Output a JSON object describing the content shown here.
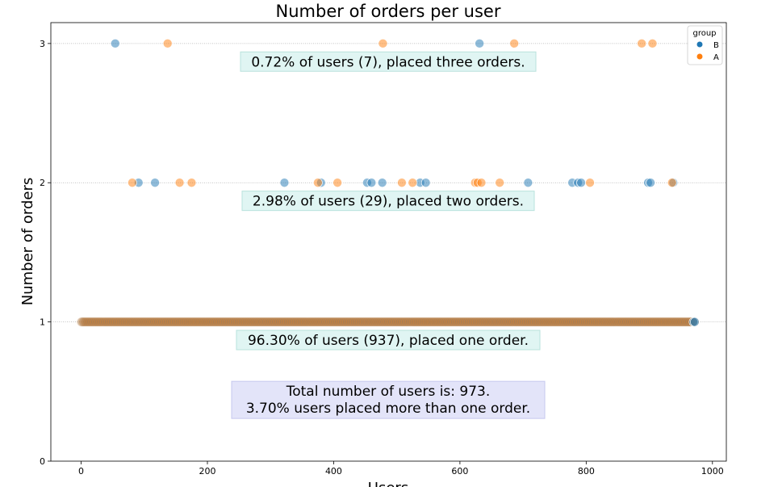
{
  "chart_data": {
    "type": "scatter",
    "title": "Number of orders per user",
    "xlabel": "Users",
    "ylabel": "Number of orders",
    "xlim": [
      -48,
      1022
    ],
    "ylim": [
      0,
      3.15
    ],
    "xticks": [
      0,
      200,
      400,
      600,
      800,
      1000
    ],
    "yticks": [
      0,
      1,
      2,
      3
    ],
    "grid": "horizontal dotted at 1, 2, 3",
    "legend": {
      "title": "group",
      "placement": "top-right",
      "entries": [
        "B",
        "A"
      ]
    },
    "colors": {
      "B": "#1f77b4",
      "A": "#ff7f0e"
    },
    "series": [
      {
        "name": "B",
        "points": [
          [
            54,
            3
          ],
          [
            631,
            3
          ],
          [
            91,
            2
          ],
          [
            117,
            2
          ],
          [
            322,
            2
          ],
          [
            380,
            2
          ],
          [
            453,
            2
          ],
          [
            460,
            2
          ],
          [
            477,
            2
          ],
          [
            537,
            2
          ],
          [
            546,
            2
          ],
          [
            708,
            2
          ],
          [
            778,
            2
          ],
          [
            787,
            2
          ],
          [
            792,
            2
          ],
          [
            898,
            2
          ],
          [
            902,
            2
          ],
          [
            938,
            2
          ],
          [
            970,
            1
          ],
          [
            972,
            1
          ]
        ]
      },
      {
        "name": "A",
        "points": [
          [
            137,
            3
          ],
          [
            478,
            3
          ],
          [
            686,
            3
          ],
          [
            888,
            3
          ],
          [
            905,
            3
          ],
          [
            81,
            2
          ],
          [
            156,
            2
          ],
          [
            175,
            2
          ],
          [
            375,
            2
          ],
          [
            406,
            2
          ],
          [
            508,
            2
          ],
          [
            525,
            2
          ],
          [
            624,
            2
          ],
          [
            628,
            2
          ],
          [
            634,
            2
          ],
          [
            663,
            2
          ],
          [
            806,
            2
          ],
          [
            936,
            2
          ]
        ]
      }
    ],
    "single_order_users": {
      "count": 937,
      "y": 1,
      "x_range": [
        0,
        972
      ]
    },
    "annotations": [
      {
        "text": "0.72% of users (7), placed three orders.",
        "y": 2.87
      },
      {
        "text": "2.98% of users (29), placed two orders.",
        "y": 1.87
      },
      {
        "text": "96.30% of users (937), placed one order.",
        "y": 0.87
      },
      {
        "lines": [
          "Total number of users is: 973.",
          "3.70% users placed more than one order."
        ],
        "y": 0.44
      }
    ]
  }
}
